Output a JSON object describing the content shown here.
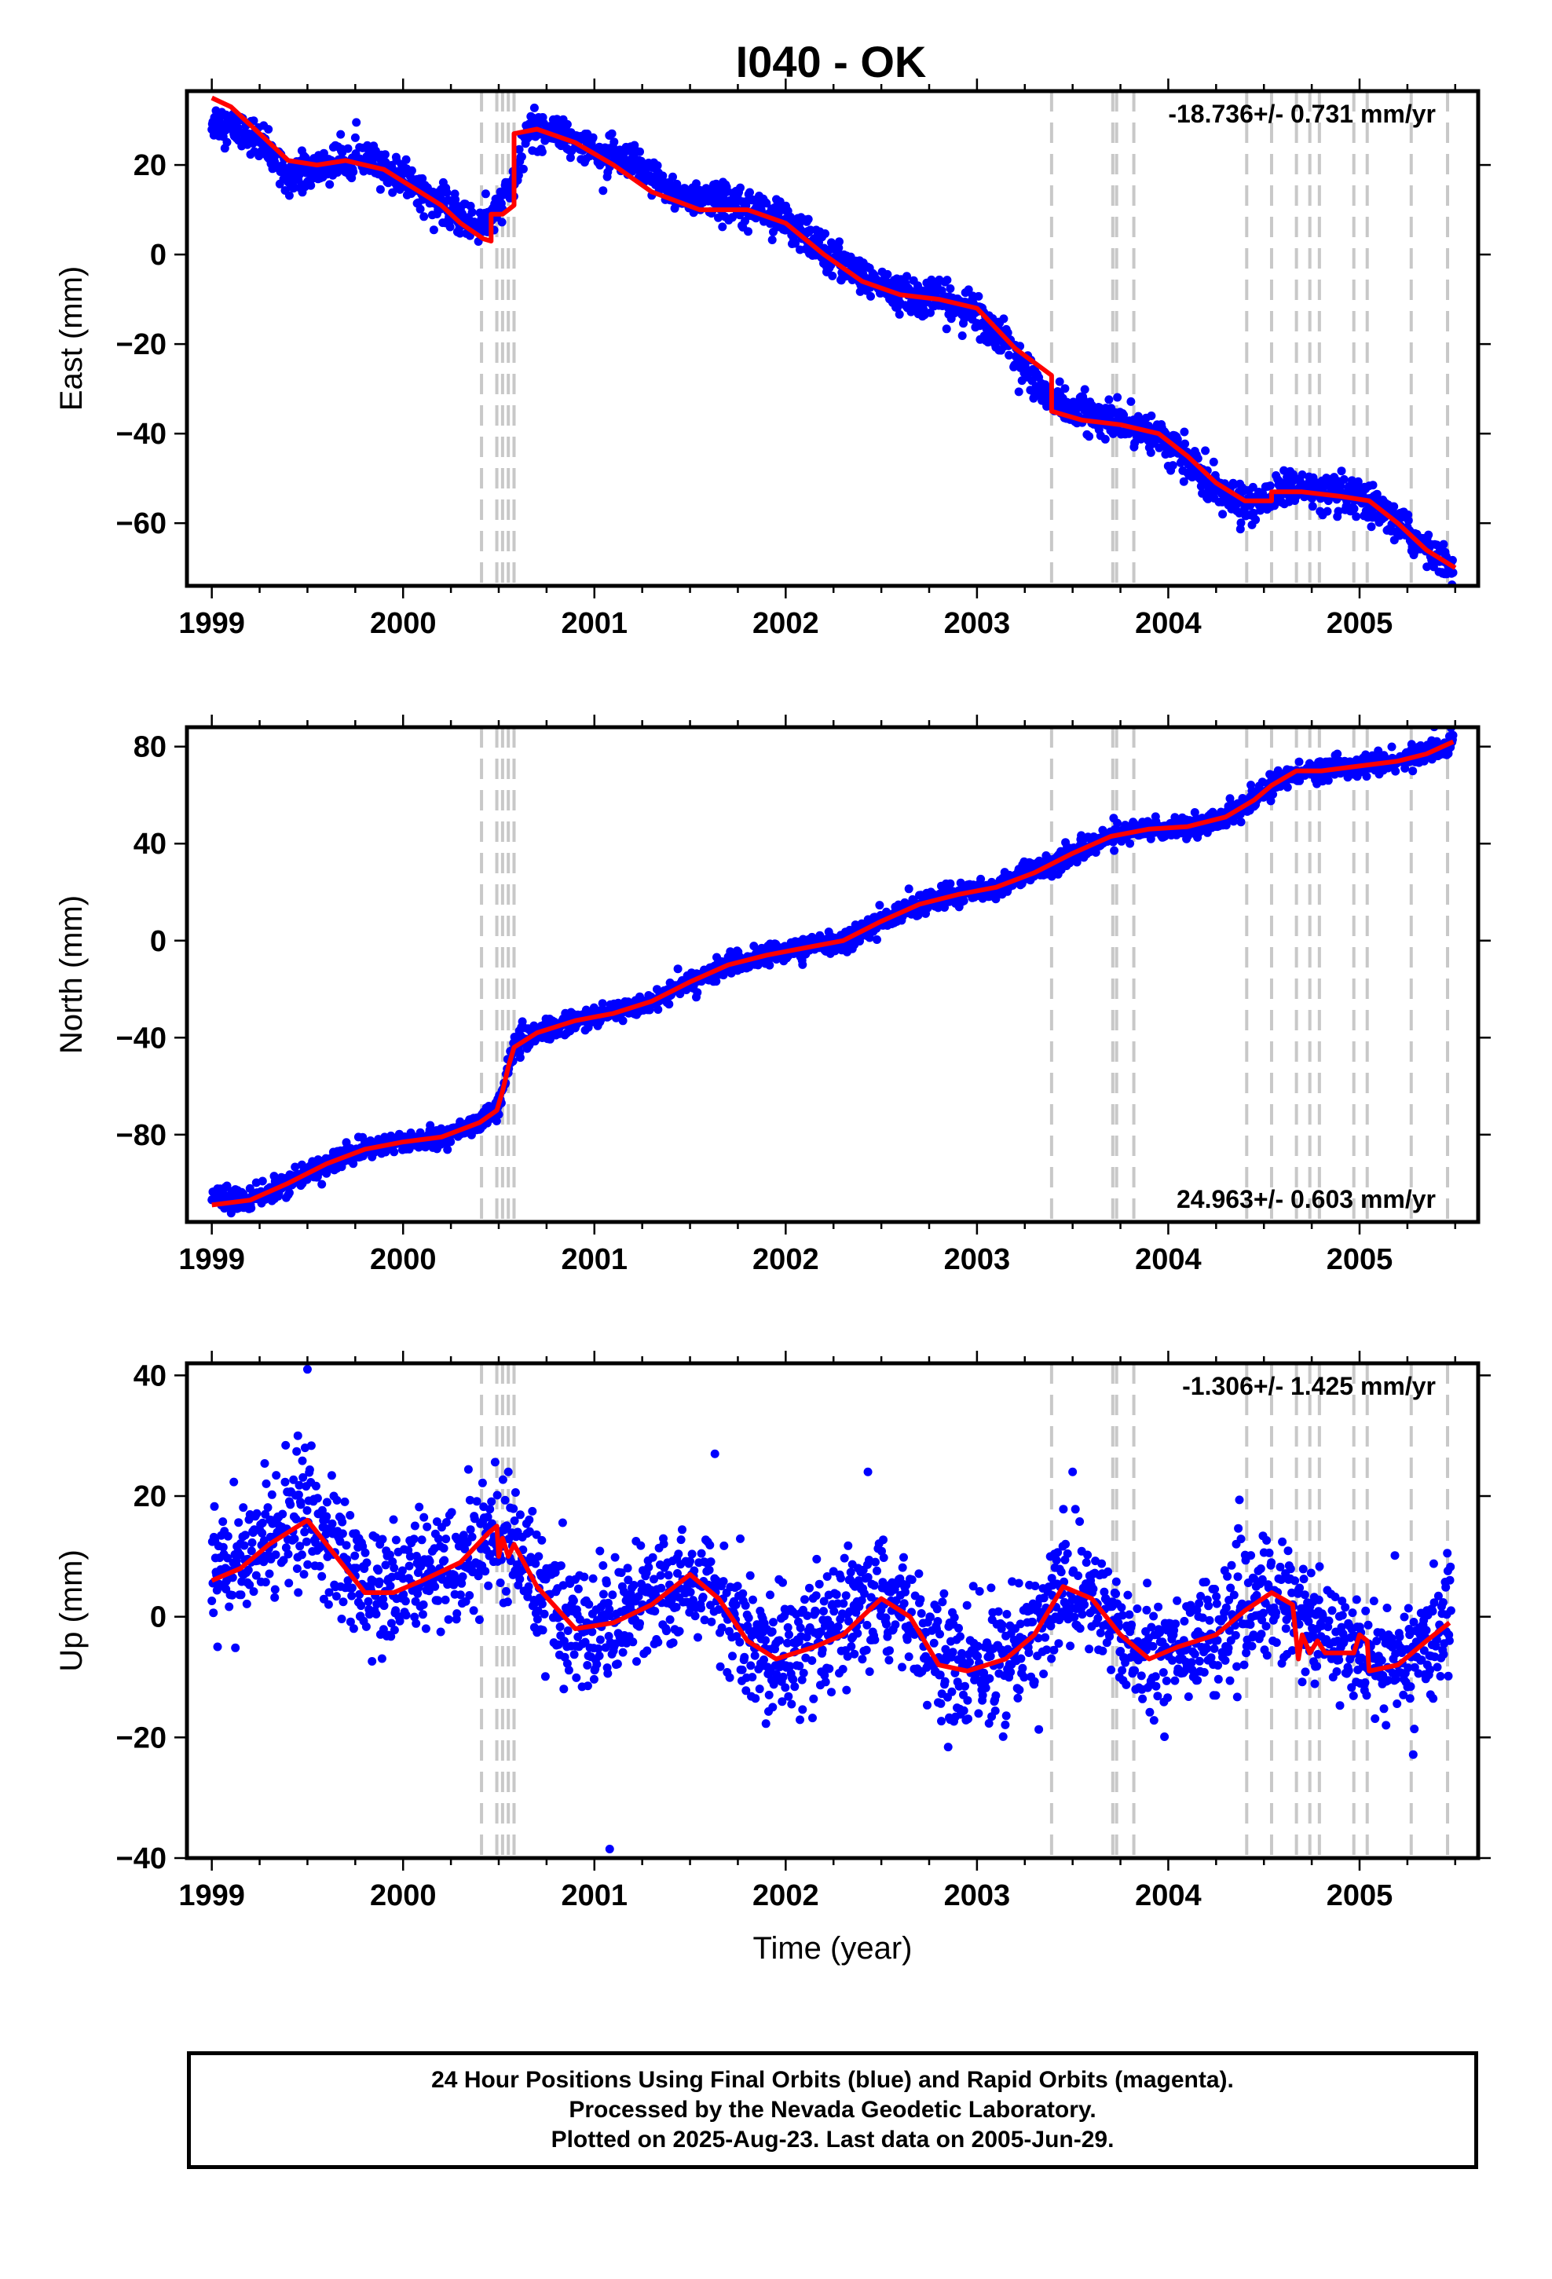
{
  "title": "I040 - OK",
  "footer": {
    "line1": "24 Hour Positions Using Final Orbits (blue) and Rapid Orbits (magenta).",
    "line2": "Processed by the Nevada Geodetic Laboratory.",
    "line3": "Plotted on 2025-Aug-23. Last data on 2005-Jun-29."
  },
  "colors": {
    "final_orbits": "#0000ff",
    "model": "#ff0000",
    "event_lines": "#c8c8c8"
  },
  "chart_data": [
    {
      "type": "scatter",
      "name": "east",
      "ylabel": "East (mm)",
      "xlim": [
        1998.87,
        2005.62
      ],
      "ylim": [
        -74,
        36.5
      ],
      "xticks": [
        1999,
        2000,
        2001,
        2002,
        2003,
        2004,
        2005
      ],
      "yticks": [
        20,
        0,
        -20,
        -40,
        -60
      ],
      "rate": "-18.736+/- 0.731 mm/yr",
      "rate_position": "top-right",
      "events": [
        2000.41,
        2000.49,
        2000.52,
        2000.55,
        2000.58,
        2003.39,
        2003.71,
        2003.73,
        2003.82,
        2004.41,
        2004.54,
        2004.67,
        2004.74,
        2004.79,
        2004.97,
        2005.04,
        2005.27,
        2005.46
      ],
      "model": [
        [
          1999.0,
          35
        ],
        [
          1999.1,
          33
        ],
        [
          1999.25,
          27
        ],
        [
          1999.4,
          21
        ],
        [
          1999.55,
          20
        ],
        [
          1999.7,
          21
        ],
        [
          1999.9,
          19
        ],
        [
          2000.05,
          15
        ],
        [
          2000.2,
          11
        ],
        [
          2000.3,
          7
        ],
        [
          2000.42,
          3.5
        ],
        [
          2000.46,
          3
        ],
        [
          2000.46,
          9
        ],
        [
          2000.52,
          9
        ],
        [
          2000.55,
          10
        ],
        [
          2000.58,
          11
        ],
        [
          2000.58,
          27
        ],
        [
          2000.7,
          28
        ],
        [
          2000.9,
          25
        ],
        [
          2001.1,
          20
        ],
        [
          2001.3,
          14
        ],
        [
          2001.55,
          10
        ],
        [
          2001.8,
          10
        ],
        [
          2002.0,
          7
        ],
        [
          2002.2,
          0
        ],
        [
          2002.4,
          -6
        ],
        [
          2002.6,
          -9
        ],
        [
          2002.8,
          -10
        ],
        [
          2003.0,
          -12
        ],
        [
          2003.2,
          -21
        ],
        [
          2003.39,
          -27
        ],
        [
          2003.39,
          -35
        ],
        [
          2003.55,
          -37
        ],
        [
          2003.75,
          -38
        ],
        [
          2003.95,
          -40
        ],
        [
          2004.1,
          -45
        ],
        [
          2004.25,
          -51
        ],
        [
          2004.4,
          -55
        ],
        [
          2004.54,
          -55
        ],
        [
          2004.54,
          -53
        ],
        [
          2004.7,
          -53
        ],
        [
          2004.9,
          -54
        ],
        [
          2005.05,
          -55
        ],
        [
          2005.2,
          -60
        ],
        [
          2005.35,
          -66
        ],
        [
          2005.5,
          -70
        ]
      ],
      "data_trend": [
        [
          1999.0,
          30
        ],
        [
          1999.2,
          27
        ],
        [
          1999.4,
          18
        ],
        [
          1999.55,
          19
        ],
        [
          1999.75,
          22
        ],
        [
          2000.0,
          17
        ],
        [
          2000.2,
          11
        ],
        [
          2000.35,
          7
        ],
        [
          2000.45,
          7
        ],
        [
          2000.58,
          16
        ],
        [
          2000.65,
          28
        ],
        [
          2000.8,
          28
        ],
        [
          2001.0,
          23
        ],
        [
          2001.2,
          20
        ],
        [
          2001.4,
          14
        ],
        [
          2001.6,
          12
        ],
        [
          2001.8,
          12
        ],
        [
          2002.0,
          7
        ],
        [
          2002.2,
          1
        ],
        [
          2002.4,
          -5
        ],
        [
          2002.6,
          -9
        ],
        [
          2002.8,
          -10
        ],
        [
          2003.0,
          -13
        ],
        [
          2003.2,
          -22
        ],
        [
          2003.35,
          -31
        ],
        [
          2003.5,
          -35
        ],
        [
          2003.7,
          -37
        ],
        [
          2003.9,
          -39
        ],
        [
          2004.1,
          -46
        ],
        [
          2004.3,
          -54
        ],
        [
          2004.45,
          -56
        ],
        [
          2004.6,
          -52
        ],
        [
          2004.8,
          -53
        ],
        [
          2005.0,
          -55
        ],
        [
          2005.2,
          -60
        ],
        [
          2005.35,
          -66
        ],
        [
          2005.49,
          -70
        ]
      ],
      "scatter_noise": 2.0
    },
    {
      "type": "scatter",
      "name": "north",
      "ylabel": "North (mm)",
      "xlim": [
        1998.87,
        2005.62
      ],
      "ylim": [
        -116,
        88
      ],
      "xticks": [
        1999,
        2000,
        2001,
        2002,
        2003,
        2004,
        2005
      ],
      "yticks": [
        80,
        40,
        0,
        -40,
        -80
      ],
      "rate": "24.963+/- 0.603 mm/yr",
      "rate_position": "bottom-right",
      "events": [
        2000.41,
        2000.49,
        2000.52,
        2000.55,
        2000.58,
        2003.39,
        2003.71,
        2003.73,
        2003.82,
        2004.41,
        2004.54,
        2004.67,
        2004.74,
        2004.79,
        2004.97,
        2005.04,
        2005.27,
        2005.46
      ],
      "model": [
        [
          1999.0,
          -109
        ],
        [
          1999.2,
          -107
        ],
        [
          1999.4,
          -100
        ],
        [
          1999.6,
          -92
        ],
        [
          1999.8,
          -86
        ],
        [
          2000.0,
          -83
        ],
        [
          2000.2,
          -81
        ],
        [
          2000.4,
          -75
        ],
        [
          2000.49,
          -70
        ],
        [
          2000.52,
          -62
        ],
        [
          2000.55,
          -52
        ],
        [
          2000.58,
          -44
        ],
        [
          2000.7,
          -38
        ],
        [
          2000.9,
          -33
        ],
        [
          2001.1,
          -30
        ],
        [
          2001.3,
          -25
        ],
        [
          2001.5,
          -17
        ],
        [
          2001.7,
          -10
        ],
        [
          2001.9,
          -6
        ],
        [
          2002.1,
          -3
        ],
        [
          2002.3,
          0
        ],
        [
          2002.5,
          8
        ],
        [
          2002.7,
          15
        ],
        [
          2002.9,
          19
        ],
        [
          2003.1,
          22
        ],
        [
          2003.3,
          28
        ],
        [
          2003.5,
          36
        ],
        [
          2003.7,
          43
        ],
        [
          2003.9,
          46
        ],
        [
          2004.1,
          47
        ],
        [
          2004.3,
          51
        ],
        [
          2004.45,
          58
        ],
        [
          2004.54,
          64
        ],
        [
          2004.67,
          70
        ],
        [
          2004.8,
          70
        ],
        [
          2005.0,
          72
        ],
        [
          2005.2,
          74
        ],
        [
          2005.35,
          77
        ],
        [
          2005.49,
          82
        ]
      ],
      "data_trend": [
        [
          1999.0,
          -106
        ],
        [
          1999.2,
          -107
        ],
        [
          1999.4,
          -100
        ],
        [
          1999.6,
          -92
        ],
        [
          1999.8,
          -86
        ],
        [
          2000.0,
          -83
        ],
        [
          2000.2,
          -81
        ],
        [
          2000.4,
          -75
        ],
        [
          2000.49,
          -70
        ],
        [
          2000.52,
          -62
        ],
        [
          2000.55,
          -52
        ],
        [
          2000.58,
          -44
        ],
        [
          2000.7,
          -38
        ],
        [
          2000.9,
          -33
        ],
        [
          2001.1,
          -30
        ],
        [
          2001.3,
          -25
        ],
        [
          2001.5,
          -17
        ],
        [
          2001.7,
          -10
        ],
        [
          2001.9,
          -6
        ],
        [
          2002.1,
          -3
        ],
        [
          2002.3,
          0
        ],
        [
          2002.5,
          8
        ],
        [
          2002.7,
          15
        ],
        [
          2002.9,
          19
        ],
        [
          2003.1,
          22
        ],
        [
          2003.3,
          28
        ],
        [
          2003.5,
          36
        ],
        [
          2003.7,
          43
        ],
        [
          2003.9,
          46
        ],
        [
          2004.1,
          47
        ],
        [
          2004.3,
          51
        ],
        [
          2004.45,
          58
        ],
        [
          2004.54,
          64
        ],
        [
          2004.67,
          70
        ],
        [
          2004.8,
          70
        ],
        [
          2005.0,
          72
        ],
        [
          2005.2,
          74
        ],
        [
          2005.35,
          77
        ],
        [
          2005.49,
          83
        ]
      ],
      "scatter_noise": 2.2
    },
    {
      "type": "scatter",
      "name": "up",
      "ylabel": "Up (mm)",
      "xlabel": "Time (year)",
      "xlim": [
        1998.87,
        2005.62
      ],
      "ylim": [
        -40,
        42
      ],
      "xticks": [
        1999,
        2000,
        2001,
        2002,
        2003,
        2004,
        2005
      ],
      "yticks": [
        40,
        20,
        0,
        -20,
        -40
      ],
      "rate": "-1.306+/- 1.425 mm/yr",
      "rate_position": "top-right",
      "events": [
        2000.41,
        2000.49,
        2000.52,
        2000.55,
        2000.58,
        2003.39,
        2003.71,
        2003.73,
        2003.82,
        2004.41,
        2004.54,
        2004.67,
        2004.74,
        2004.79,
        2004.97,
        2005.04,
        2005.27,
        2005.46
      ],
      "model": [
        [
          1999.0,
          6
        ],
        [
          1999.15,
          8
        ],
        [
          1999.3,
          12
        ],
        [
          1999.5,
          16
        ],
        [
          1999.65,
          10
        ],
        [
          1999.8,
          4
        ],
        [
          1999.95,
          4
        ],
        [
          2000.1,
          6
        ],
        [
          2000.3,
          9
        ],
        [
          2000.45,
          14
        ],
        [
          2000.49,
          15
        ],
        [
          2000.5,
          10
        ],
        [
          2000.52,
          13
        ],
        [
          2000.55,
          10
        ],
        [
          2000.58,
          12
        ],
        [
          2000.7,
          5
        ],
        [
          2000.9,
          -2
        ],
        [
          2001.1,
          -1
        ],
        [
          2001.3,
          2
        ],
        [
          2001.5,
          7
        ],
        [
          2001.65,
          3
        ],
        [
          2001.8,
          -4
        ],
        [
          2001.95,
          -7
        ],
        [
          2002.15,
          -5
        ],
        [
          2002.3,
          -3
        ],
        [
          2002.5,
          3
        ],
        [
          2002.65,
          0
        ],
        [
          2002.8,
          -8
        ],
        [
          2002.95,
          -9
        ],
        [
          2003.15,
          -7
        ],
        [
          2003.3,
          -3
        ],
        [
          2003.45,
          5
        ],
        [
          2003.6,
          3
        ],
        [
          2003.75,
          -3
        ],
        [
          2003.9,
          -7
        ],
        [
          2004.05,
          -5
        ],
        [
          2004.25,
          -3
        ],
        [
          2004.4,
          1
        ],
        [
          2004.54,
          4
        ],
        [
          2004.65,
          2
        ],
        [
          2004.68,
          -7
        ],
        [
          2004.7,
          -3
        ],
        [
          2004.74,
          -6
        ],
        [
          2004.78,
          -4
        ],
        [
          2004.82,
          -6
        ],
        [
          2004.97,
          -6
        ],
        [
          2005.0,
          -3
        ],
        [
          2005.04,
          -4
        ],
        [
          2005.05,
          -9
        ],
        [
          2005.2,
          -8
        ],
        [
          2005.35,
          -4
        ],
        [
          2005.47,
          -1
        ]
      ],
      "data_trend": [
        [
          1999.0,
          7
        ],
        [
          1999.15,
          9
        ],
        [
          1999.3,
          13
        ],
        [
          1999.5,
          17
        ],
        [
          1999.65,
          11
        ],
        [
          1999.8,
          5
        ],
        [
          1999.95,
          4
        ],
        [
          2000.1,
          6
        ],
        [
          2000.3,
          9
        ],
        [
          2000.45,
          14
        ],
        [
          2000.55,
          13
        ],
        [
          2000.7,
          5
        ],
        [
          2000.9,
          -1
        ],
        [
          2001.1,
          0
        ],
        [
          2001.3,
          3
        ],
        [
          2001.5,
          7
        ],
        [
          2001.65,
          3
        ],
        [
          2001.8,
          -4
        ],
        [
          2001.95,
          -6
        ],
        [
          2002.15,
          -5
        ],
        [
          2002.3,
          -2
        ],
        [
          2002.5,
          3
        ],
        [
          2002.65,
          0
        ],
        [
          2002.8,
          -8
        ],
        [
          2002.95,
          -9
        ],
        [
          2003.15,
          -7
        ],
        [
          2003.3,
          -3
        ],
        [
          2003.45,
          5
        ],
        [
          2003.6,
          3
        ],
        [
          2003.75,
          -3
        ],
        [
          2003.9,
          -7
        ],
        [
          2004.05,
          -5
        ],
        [
          2004.25,
          -3
        ],
        [
          2004.4,
          1
        ],
        [
          2004.54,
          4
        ],
        [
          2004.7,
          0
        ],
        [
          2004.85,
          -5
        ],
        [
          2005.0,
          -5
        ],
        [
          2005.2,
          -8
        ],
        [
          2005.35,
          -4
        ],
        [
          2005.48,
          -1
        ]
      ],
      "scatter_noise": 5.0,
      "outliers": [
        [
          1999.5,
          41
        ],
        [
          2001.08,
          -38.5
        ],
        [
          1999.45,
          30
        ],
        [
          2000.55,
          24
        ],
        [
          2003.5,
          24
        ],
        [
          2002.43,
          24
        ],
        [
          2001.63,
          27
        ]
      ]
    }
  ]
}
